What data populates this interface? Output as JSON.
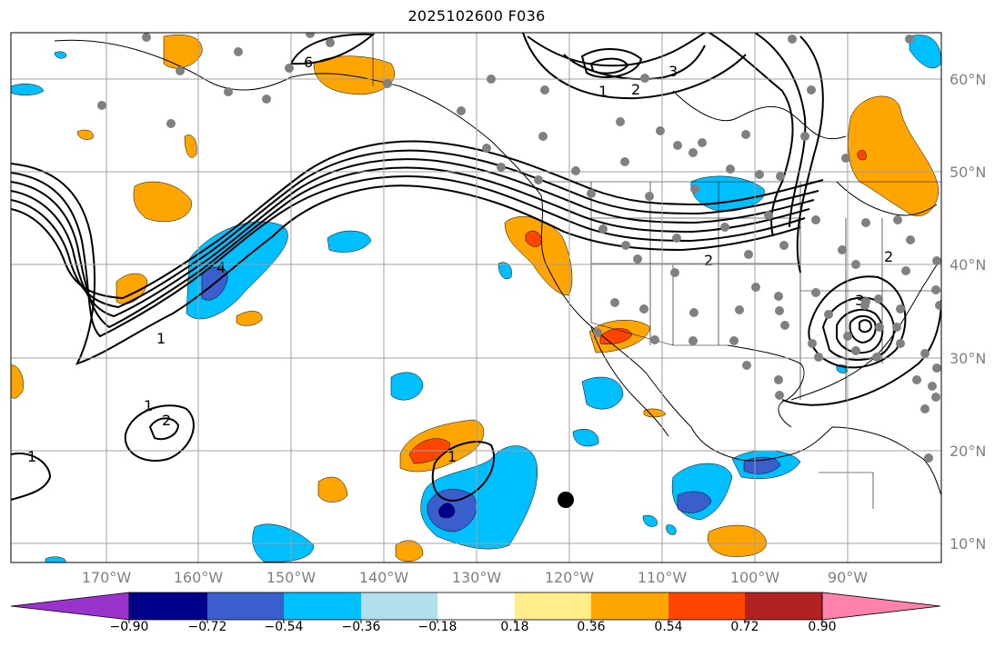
{
  "title": "2025102600 F036",
  "lat_labels": [
    "60°N",
    "50°N",
    "40°N",
    "30°N",
    "20°N",
    "10°N"
  ],
  "lon_labels": [
    "170°W",
    "160°W",
    "150°W",
    "140°W",
    "130°W",
    "120°W",
    "110°W",
    "100°W",
    "90°W"
  ],
  "colorbar": {
    "ticks": [
      "−0.90",
      "−0.72",
      "−0.54",
      "−0.36",
      "−0.18",
      "0.18",
      "0.36",
      "0.54",
      "0.72",
      "0.90"
    ],
    "colors": [
      "#9a32cd",
      "#00008b",
      "#3a5fcd",
      "#00bfff",
      "#b2dfee",
      "#ffffff",
      "#ffec8b",
      "#ffa500",
      "#ff4500",
      "#b22222",
      "#ff82ab"
    ]
  },
  "contour_labels": [
    "6",
    "1",
    "2",
    "3",
    "4",
    "1",
    "2",
    "1",
    "1",
    "2",
    "3",
    "2",
    "1"
  ],
  "colors": {
    "grid": "#a0a0a0",
    "station": "#808080",
    "contour": "#000000"
  }
}
